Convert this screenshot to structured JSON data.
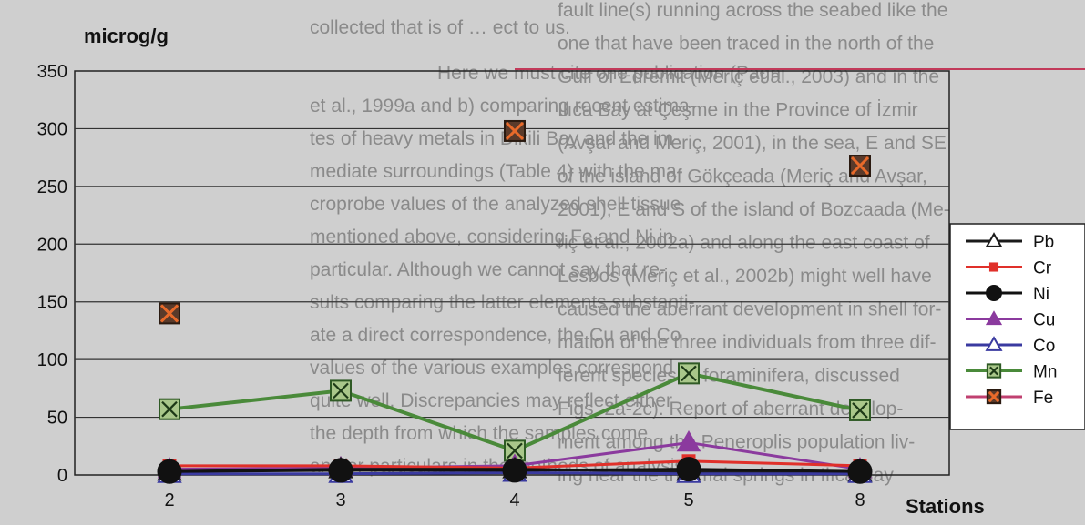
{
  "chart_data": {
    "type": "line",
    "ylabel": "microg/g",
    "xlabel": "Stations",
    "categories": [
      "2",
      "3",
      "4",
      "5",
      "8"
    ],
    "ylim": [
      0,
      350
    ],
    "yticks": [
      0,
      50,
      100,
      150,
      200,
      250,
      300,
      350
    ],
    "grid": "horizontal",
    "legend_position": "right",
    "series": [
      {
        "name": "Pb",
        "color": "#1a1a1a",
        "marker": "triangle-open",
        "values": [
          3,
          5,
          5,
          3,
          2
        ]
      },
      {
        "name": "Cr",
        "color": "#e0302a",
        "marker": "square",
        "values": [
          8,
          8,
          6,
          12,
          8
        ]
      },
      {
        "name": "Ni",
        "color": "#111111",
        "marker": "circle",
        "values": [
          3,
          4,
          4,
          5,
          3
        ]
      },
      {
        "name": "Cu",
        "color": "#8b3a9e",
        "marker": "triangle",
        "values": [
          5,
          6,
          8,
          28,
          5
        ]
      },
      {
        "name": "Co",
        "color": "#3a3aa0",
        "marker": "triangle-open",
        "values": [
          1,
          1,
          2,
          1,
          1
        ]
      },
      {
        "name": "Mn",
        "color": "#4a8a3a",
        "marker": "x-square",
        "values": [
          57,
          73,
          21,
          88,
          56
        ]
      },
      {
        "name": "Fe",
        "color": "#c04070",
        "marker": "x-square-brown",
        "values": [
          140,
          null,
          298,
          null,
          268
        ]
      }
    ]
  },
  "background_text": [
    "collected that is of … ect to us.",
    "Here we must cite one publication (Pagn",
    "et al., 1999a and b) comparing recent estima-",
    "tes of heavy metals in Dikili Bay and the im-",
    "mediate surroundings (Table 4) with the ma-",
    "croprobe values of the analyzed shell tissue",
    "mentioned above, considering Fe and Ni in",
    "particular. Although we cannot say that re-",
    "sults comparing the latter elements substanti-",
    "ate a direct correspondence, the Cu and Co",
    "values of the various examples correspond",
    "quite well. Discrepancies may reflect either",
    "the depth from which the samples come",
    "and/or particulars in the methods of analysis",
    "fault line(s) running across the seabed like the",
    "one that have been traced in the north of the",
    "Gulf of Edremit (Meriç et al., 2003) and in the",
    "Ilıca Bay at Çeşme in the Province of İzmir",
    "(Avşar and Meriç, 2001), in the sea, E and SE",
    "of the island of Gökçeada (Meriç and Avşar,",
    "2001), E and S of the island of Bozcaada (Me-",
    "riç et al., 2002a) and along the east coast of",
    "Lesbos (Meriç et al., 2002b) might well have",
    "caused the aberrant development in shell for-",
    "mation of the three individuals from three dif-",
    "ferent species of foraminifera, discussed",
    "Figs. 2a-2c). Report of aberrant develop-",
    "ment among the Peneroplis population liv-",
    "ing near the thermal springs in Ilıca Bay"
  ]
}
